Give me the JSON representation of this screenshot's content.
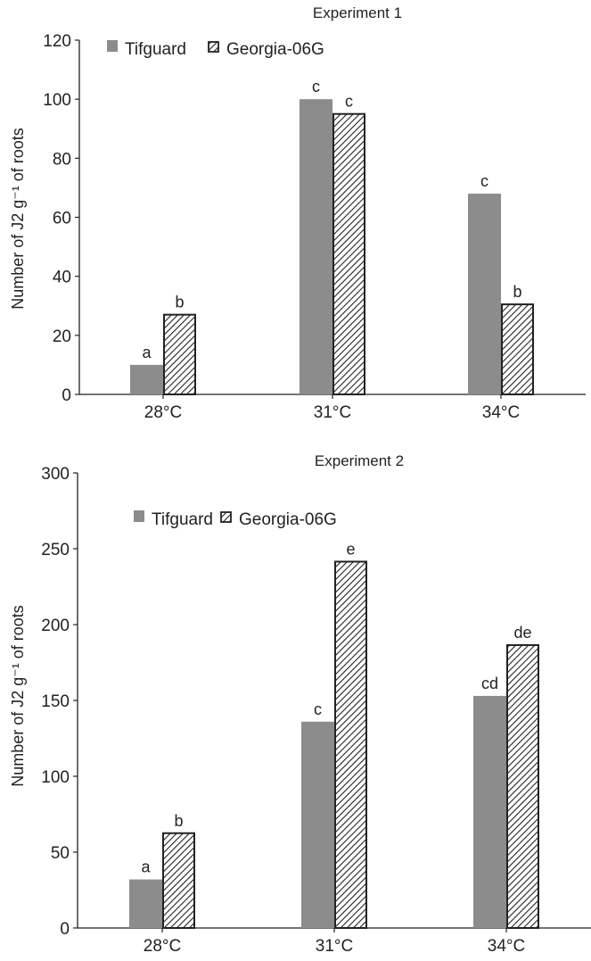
{
  "chart_data": [
    {
      "type": "bar",
      "title": "Experiment 1",
      "xlabel": "",
      "ylabel": "Number of J2 g⁻¹ of  roots",
      "ylim": [
        0,
        120
      ],
      "yticks": [
        0,
        20,
        40,
        60,
        80,
        100,
        120
      ],
      "categories": [
        "28°C",
        "31°C",
        "34°C"
      ],
      "legend_position": "top-left",
      "grid": false,
      "series": [
        {
          "name": "Tifguard",
          "color": "#8c8c8c",
          "pattern": "solid",
          "values": [
            10,
            100,
            68
          ],
          "letters": [
            "a",
            "c",
            "c"
          ]
        },
        {
          "name": "Georgia-06G",
          "color": "#222222",
          "pattern": "hatched",
          "values": [
            27,
            95,
            30.5
          ],
          "letters": [
            "b",
            "c",
            "b"
          ]
        }
      ]
    },
    {
      "type": "bar",
      "title": "Experiment 2",
      "xlabel": "",
      "ylabel": "Number of J2 g⁻¹ of  roots",
      "ylim": [
        0,
        300
      ],
      "yticks": [
        0,
        50,
        100,
        150,
        200,
        250,
        300
      ],
      "categories": [
        "28°C",
        "31°C",
        "34°C"
      ],
      "legend_position": "top-left",
      "grid": false,
      "series": [
        {
          "name": "Tifguard",
          "color": "#8c8c8c",
          "pattern": "solid",
          "values": [
            32,
            136,
            153
          ],
          "letters": [
            "a",
            "c",
            "cd"
          ]
        },
        {
          "name": "Georgia-06G",
          "color": "#222222",
          "pattern": "hatched",
          "values": [
            62.5,
            241.5,
            186.5
          ],
          "letters": [
            "b",
            "e",
            "de"
          ]
        }
      ]
    }
  ]
}
